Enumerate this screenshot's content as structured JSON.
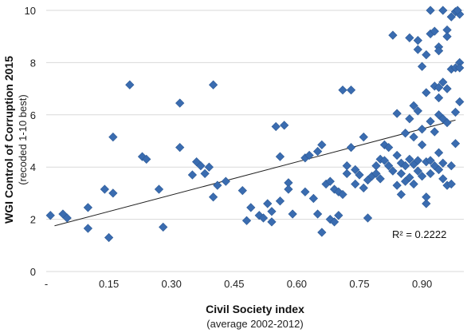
{
  "chart_data": {
    "type": "scatter",
    "title": "",
    "xlabel": "Civil Society index",
    "xlabel_sub": "(average 2002-2012)",
    "ylabel": "WGI Control of Corruption 2015",
    "ylabel_sub": "(recoded 1-10 best)",
    "xlim": [
      0,
      1.0
    ],
    "ylim": [
      0,
      10
    ],
    "x_ticks": [
      {
        "value": 0.0,
        "label": "-"
      },
      {
        "value": 0.15,
        "label": "0.15"
      },
      {
        "value": 0.3,
        "label": "0.30"
      },
      {
        "value": 0.45,
        "label": "0.45"
      },
      {
        "value": 0.6,
        "label": "0.60"
      },
      {
        "value": 0.75,
        "label": "0.75"
      },
      {
        "value": 0.9,
        "label": "0.90"
      }
    ],
    "y_ticks": [
      {
        "value": 0,
        "label": "0"
      },
      {
        "value": 2,
        "label": "2"
      },
      {
        "value": 4,
        "label": "4"
      },
      {
        "value": 6,
        "label": "6"
      },
      {
        "value": 8,
        "label": "8"
      },
      {
        "value": 10,
        "label": "10"
      }
    ],
    "grid": "horizontal",
    "marker_color": "#3a6cb0",
    "trendline": {
      "type": "linear",
      "x": [
        0.02,
        0.98
      ],
      "y": [
        1.75,
        5.8
      ],
      "color": "#222222"
    },
    "r_squared_label": "R² = 0.2222",
    "series": [
      {
        "points": [
          [
            0.01,
            2.15
          ],
          [
            0.04,
            2.2
          ],
          [
            0.05,
            2.05
          ],
          [
            0.1,
            2.45
          ],
          [
            0.1,
            1.65
          ],
          [
            0.14,
            3.15
          ],
          [
            0.15,
            1.3
          ],
          [
            0.16,
            5.15
          ],
          [
            0.16,
            3.0
          ],
          [
            0.2,
            7.15
          ],
          [
            0.23,
            4.4
          ],
          [
            0.24,
            4.3
          ],
          [
            0.27,
            3.15
          ],
          [
            0.28,
            1.7
          ],
          [
            0.32,
            6.45
          ],
          [
            0.32,
            4.75
          ],
          [
            0.35,
            3.7
          ],
          [
            0.36,
            4.2
          ],
          [
            0.37,
            4.05
          ],
          [
            0.38,
            3.75
          ],
          [
            0.39,
            4.0
          ],
          [
            0.4,
            7.15
          ],
          [
            0.4,
            2.85
          ],
          [
            0.41,
            3.3
          ],
          [
            0.43,
            3.45
          ],
          [
            0.47,
            3.1
          ],
          [
            0.48,
            1.95
          ],
          [
            0.49,
            2.45
          ],
          [
            0.51,
            2.15
          ],
          [
            0.52,
            2.05
          ],
          [
            0.53,
            2.6
          ],
          [
            0.54,
            1.9
          ],
          [
            0.54,
            2.3
          ],
          [
            0.55,
            5.55
          ],
          [
            0.56,
            4.4
          ],
          [
            0.56,
            2.7
          ],
          [
            0.57,
            5.6
          ],
          [
            0.58,
            3.4
          ],
          [
            0.58,
            3.15
          ],
          [
            0.59,
            2.2
          ],
          [
            0.62,
            4.35
          ],
          [
            0.62,
            3.05
          ],
          [
            0.63,
            4.45
          ],
          [
            0.64,
            2.8
          ],
          [
            0.65,
            4.6
          ],
          [
            0.65,
            2.2
          ],
          [
            0.66,
            1.5
          ],
          [
            0.66,
            4.85
          ],
          [
            0.67,
            3.35
          ],
          [
            0.68,
            3.45
          ],
          [
            0.68,
            2.0
          ],
          [
            0.69,
            3.15
          ],
          [
            0.69,
            1.9
          ],
          [
            0.7,
            3.05
          ],
          [
            0.7,
            2.15
          ],
          [
            0.71,
            6.95
          ],
          [
            0.71,
            2.95
          ],
          [
            0.72,
            3.75
          ],
          [
            0.72,
            4.05
          ],
          [
            0.73,
            6.95
          ],
          [
            0.73,
            4.75
          ],
          [
            0.74,
            3.9
          ],
          [
            0.74,
            3.35
          ],
          [
            0.75,
            3.7
          ],
          [
            0.76,
            5.15
          ],
          [
            0.76,
            3.2
          ],
          [
            0.77,
            2.05
          ],
          [
            0.77,
            3.5
          ],
          [
            0.78,
            3.65
          ],
          [
            0.79,
            4.05
          ],
          [
            0.79,
            3.75
          ],
          [
            0.8,
            4.3
          ],
          [
            0.8,
            3.55
          ],
          [
            0.81,
            4.85
          ],
          [
            0.81,
            4.25
          ],
          [
            0.82,
            4.75
          ],
          [
            0.82,
            4.05
          ],
          [
            0.83,
            3.85
          ],
          [
            0.83,
            9.05
          ],
          [
            0.84,
            6.05
          ],
          [
            0.84,
            4.45
          ],
          [
            0.84,
            3.3
          ],
          [
            0.85,
            4.15
          ],
          [
            0.85,
            2.95
          ],
          [
            0.85,
            3.75
          ],
          [
            0.86,
            5.3
          ],
          [
            0.86,
            4.05
          ],
          [
            0.86,
            3.45
          ],
          [
            0.87,
            8.95
          ],
          [
            0.87,
            5.85
          ],
          [
            0.87,
            4.3
          ],
          [
            0.87,
            3.6
          ],
          [
            0.88,
            6.35
          ],
          [
            0.88,
            5.15
          ],
          [
            0.88,
            4.1
          ],
          [
            0.88,
            3.35
          ],
          [
            0.89,
            8.85
          ],
          [
            0.89,
            8.5
          ],
          [
            0.89,
            6.15
          ],
          [
            0.89,
            4.25
          ],
          [
            0.89,
            3.85
          ],
          [
            0.9,
            7.85
          ],
          [
            0.9,
            5.45
          ],
          [
            0.9,
            4.85
          ],
          [
            0.9,
            3.65
          ],
          [
            0.91,
            8.3
          ],
          [
            0.91,
            6.85
          ],
          [
            0.91,
            4.2
          ],
          [
            0.91,
            2.6
          ],
          [
            0.91,
            2.85
          ],
          [
            0.92,
            10.0
          ],
          [
            0.92,
            9.1
          ],
          [
            0.92,
            5.75
          ],
          [
            0.92,
            4.25
          ],
          [
            0.92,
            3.75
          ],
          [
            0.93,
            9.2
          ],
          [
            0.93,
            7.1
          ],
          [
            0.93,
            5.35
          ],
          [
            0.93,
            4.05
          ],
          [
            0.94,
            8.6
          ],
          [
            0.94,
            8.45
          ],
          [
            0.94,
            7.05
          ],
          [
            0.94,
            6.65
          ],
          [
            0.94,
            6.0
          ],
          [
            0.94,
            4.55
          ],
          [
            0.94,
            3.9
          ],
          [
            0.95,
            10.0
          ],
          [
            0.95,
            7.25
          ],
          [
            0.95,
            5.85
          ],
          [
            0.95,
            4.15
          ],
          [
            0.95,
            3.55
          ],
          [
            0.96,
            9.25
          ],
          [
            0.96,
            9.0
          ],
          [
            0.96,
            7.0
          ],
          [
            0.96,
            5.7
          ],
          [
            0.96,
            3.3
          ],
          [
            0.97,
            9.75
          ],
          [
            0.97,
            7.75
          ],
          [
            0.97,
            4.05
          ],
          [
            0.97,
            3.35
          ],
          [
            0.98,
            9.95
          ],
          [
            0.98,
            7.8
          ],
          [
            0.98,
            6.1
          ],
          [
            0.98,
            4.9
          ],
          [
            0.99,
            9.85
          ],
          [
            0.99,
            8.0
          ],
          [
            0.99,
            6.5
          ],
          [
            0.99,
            7.8
          ],
          [
            0.985,
            10.0
          ]
        ]
      }
    ]
  }
}
